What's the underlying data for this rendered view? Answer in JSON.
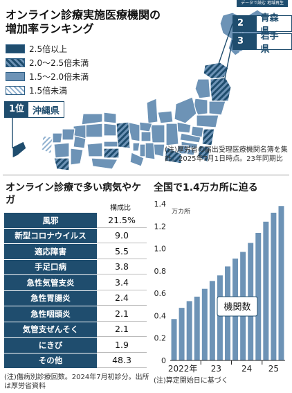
{
  "corner_tag": "データで読む 地域再生",
  "map": {
    "title": "オンライン診療実施医療機関の増加率ランキング",
    "legend": [
      {
        "label": "2.5倍以上",
        "color": "#1f4d6e",
        "pattern": "solid"
      },
      {
        "label": "2.0～2.5倍未満",
        "color": "#2e5f86",
        "pattern": "stripe"
      },
      {
        "label": "1.5～2.0倍未満",
        "color": "#6d93b6",
        "pattern": "solid"
      },
      {
        "label": "1.5倍未満",
        "color": "#a7bfd8",
        "pattern": "lightstripe"
      }
    ],
    "rank_boxes": [
      {
        "rank": "1位",
        "prefecture": "沖縄県"
      },
      {
        "rank": "2位",
        "prefecture": "青森県"
      },
      {
        "rank": "3位",
        "prefecture": "岩手県"
      }
    ],
    "note": "(注)厚労省の届出受理医療機関名簿を集計。2025年7月1日時点。23年同期比"
  },
  "diseases": {
    "title": "オンライン診療で多い病気やケガ",
    "column_header": "構成比",
    "rows": [
      {
        "name": "風邪",
        "value": "21.5%"
      },
      {
        "name": "新型コロナウイルス",
        "value": "9.0"
      },
      {
        "name": "適応障害",
        "value": "5.5"
      },
      {
        "name": "手足口病",
        "value": "3.8"
      },
      {
        "name": "急性気管支炎",
        "value": "3.4"
      },
      {
        "name": "急性胃腸炎",
        "value": "2.4"
      },
      {
        "name": "急性咽頭炎",
        "value": "2.1"
      },
      {
        "name": "気管支ぜんそく",
        "value": "2.1"
      },
      {
        "name": "にきび",
        "value": "1.9"
      },
      {
        "name": "その他",
        "value": "48.3"
      }
    ],
    "note": "(注)傷病別診療回数。2024年7月初診分。出所は厚労省資料"
  },
  "chart_data": {
    "type": "bar",
    "title": "全国で1.4万カ所に迫る",
    "unit_label": "万カ所",
    "series_label": "機関数",
    "categories": [
      "2022-Q1",
      "2022-Q2",
      "2022-Q3",
      "2022-Q4",
      "2023-Q1",
      "2023-Q2",
      "2023-Q3",
      "2023-Q4",
      "2024-Q1",
      "2024-Q2",
      "2024-Q3",
      "2024-Q4",
      "2025-Q1",
      "2025-Q2",
      "2025-Q3"
    ],
    "values": [
      0.37,
      0.47,
      0.53,
      0.57,
      0.64,
      0.71,
      0.76,
      0.84,
      0.91,
      0.97,
      1.05,
      1.14,
      1.24,
      1.32,
      1.38
    ],
    "x_tick_labels": [
      "2022年",
      "23",
      "24",
      "25"
    ],
    "y_ticks": [
      0,
      0.2,
      0.4,
      0.6,
      0.8,
      1.0,
      1.2,
      1.4
    ],
    "y_tick_labels": [
      "0",
      "0.2",
      "0.4",
      "0.6",
      "0.8",
      "1.0",
      "1.2",
      "1.4"
    ],
    "ylim": [
      0,
      1.4
    ],
    "bar_color": "#6d93b6",
    "grid": false,
    "note": "(注)算定開始日に基づく"
  }
}
